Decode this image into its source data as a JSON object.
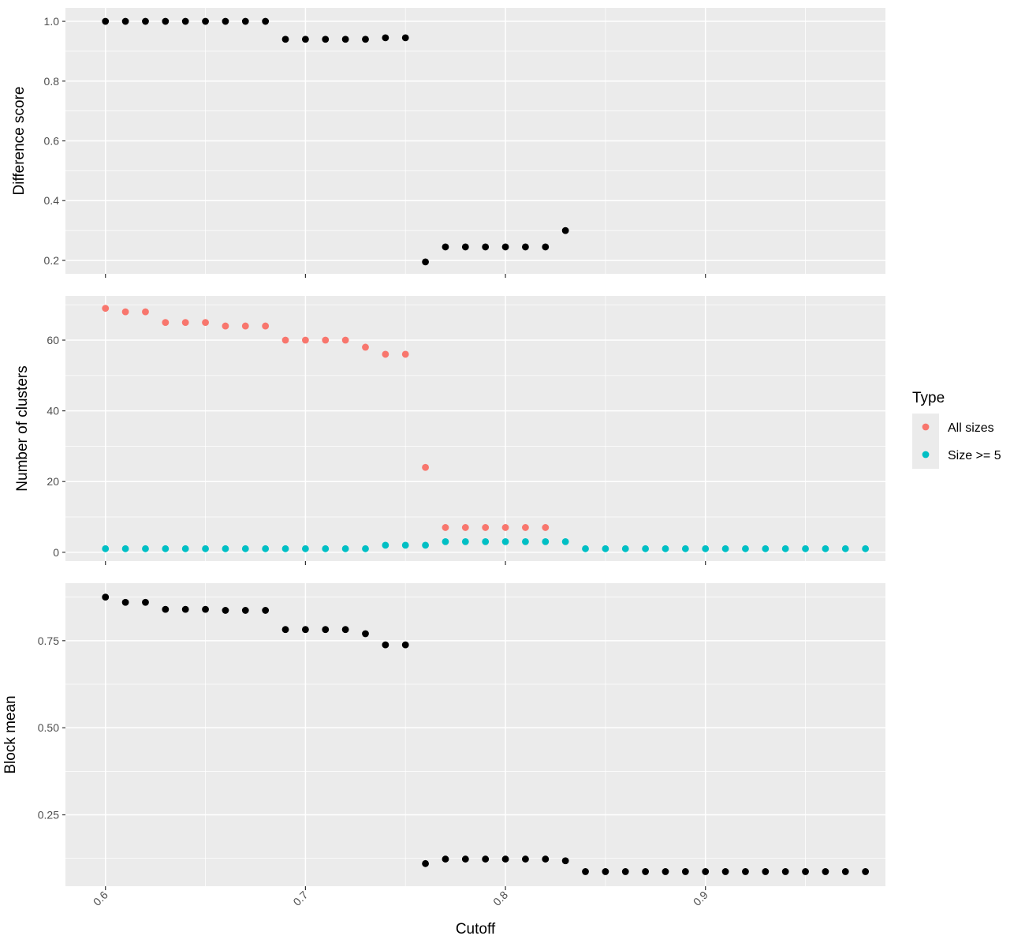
{
  "chart_data": {
    "type": "scatter",
    "xlabel": "Cutoff",
    "xlim": [
      0.58,
      0.99
    ],
    "x_ticks": [
      0.6,
      0.7,
      0.8,
      0.9
    ],
    "x_tick_labels": [
      "0.6",
      "0.7",
      "0.8",
      "0.9"
    ],
    "grid": true,
    "legend": {
      "title": "Type",
      "position": "right",
      "entries": [
        {
          "label": "All sizes",
          "color": "#F8766D"
        },
        {
          "label": "Size >= 5",
          "color": "#00BFC4"
        }
      ]
    },
    "panels": [
      {
        "ylabel": "Difference score",
        "ylim": [
          0.155,
          1.045
        ],
        "y_ticks": [
          0.2,
          0.4,
          0.6,
          0.8,
          1.0
        ],
        "y_tick_labels": [
          "0.2",
          "0.4",
          "0.6",
          "0.8",
          "1.0"
        ],
        "series": [
          {
            "color": "#000000",
            "x": [
              0.6,
              0.61,
              0.62,
              0.63,
              0.64,
              0.65,
              0.66,
              0.67,
              0.68,
              0.69,
              0.7,
              0.71,
              0.72,
              0.73,
              0.74,
              0.75,
              0.76,
              0.77,
              0.78,
              0.79,
              0.8,
              0.81,
              0.82,
              0.83
            ],
            "y": [
              1.0,
              1.0,
              1.0,
              1.0,
              1.0,
              1.0,
              1.0,
              1.0,
              1.0,
              0.94,
              0.94,
              0.94,
              0.94,
              0.94,
              0.945,
              0.945,
              0.195,
              0.245,
              0.245,
              0.245,
              0.245,
              0.245,
              0.245,
              0.3
            ]
          }
        ]
      },
      {
        "ylabel": "Number of clusters",
        "ylim": [
          -2.5,
          72.5
        ],
        "y_ticks": [
          0,
          20,
          40,
          60
        ],
        "y_tick_labels": [
          "0",
          "20",
          "40",
          "60"
        ],
        "series": [
          {
            "name": "All sizes",
            "color": "#F8766D",
            "x": [
              0.6,
              0.61,
              0.62,
              0.63,
              0.64,
              0.65,
              0.66,
              0.67,
              0.68,
              0.69,
              0.7,
              0.71,
              0.72,
              0.73,
              0.74,
              0.75,
              0.76,
              0.77,
              0.78,
              0.79,
              0.8,
              0.81,
              0.82
            ],
            "y": [
              69,
              68,
              68,
              65,
              65,
              65,
              64,
              64,
              64,
              60,
              60,
              60,
              60,
              58,
              56,
              56,
              24,
              7,
              7,
              7,
              7,
              7,
              7
            ]
          },
          {
            "name": "Size >= 5",
            "color": "#00BFC4",
            "x": [
              0.6,
              0.61,
              0.62,
              0.63,
              0.64,
              0.65,
              0.66,
              0.67,
              0.68,
              0.69,
              0.7,
              0.71,
              0.72,
              0.73,
              0.74,
              0.75,
              0.76,
              0.77,
              0.78,
              0.79,
              0.8,
              0.81,
              0.82,
              0.83,
              0.84,
              0.85,
              0.86,
              0.87,
              0.88,
              0.89,
              0.9,
              0.91,
              0.92,
              0.93,
              0.94,
              0.95,
              0.96,
              0.97,
              0.98
            ],
            "y": [
              1,
              1,
              1,
              1,
              1,
              1,
              1,
              1,
              1,
              1,
              1,
              1,
              1,
              1,
              2,
              2,
              2,
              3,
              3,
              3,
              3,
              3,
              3,
              3,
              1,
              1,
              1,
              1,
              1,
              1,
              1,
              1,
              1,
              1,
              1,
              1,
              1,
              1,
              1
            ]
          }
        ]
      },
      {
        "ylabel": "Block mean",
        "ylim": [
          0.045,
          0.915
        ],
        "y_ticks": [
          0.25,
          0.5,
          0.75
        ],
        "y_tick_labels": [
          "0.25",
          "0.50",
          "0.75"
        ],
        "series": [
          {
            "color": "#000000",
            "x": [
              0.6,
              0.61,
              0.62,
              0.63,
              0.64,
              0.65,
              0.66,
              0.67,
              0.68,
              0.69,
              0.7,
              0.71,
              0.72,
              0.73,
              0.74,
              0.75,
              0.76,
              0.77,
              0.78,
              0.79,
              0.8,
              0.81,
              0.82,
              0.83,
              0.84,
              0.85,
              0.86,
              0.87,
              0.88,
              0.89,
              0.9,
              0.91,
              0.92,
              0.93,
              0.94,
              0.95,
              0.96,
              0.97,
              0.98
            ],
            "y": [
              0.875,
              0.86,
              0.86,
              0.84,
              0.84,
              0.84,
              0.837,
              0.837,
              0.837,
              0.782,
              0.782,
              0.782,
              0.782,
              0.77,
              0.738,
              0.738,
              0.11,
              0.123,
              0.123,
              0.123,
              0.123,
              0.123,
              0.123,
              0.118,
              0.087,
              0.087,
              0.087,
              0.087,
              0.087,
              0.087,
              0.087,
              0.087,
              0.087,
              0.087,
              0.087,
              0.087,
              0.087,
              0.087,
              0.087
            ]
          }
        ]
      }
    ]
  }
}
